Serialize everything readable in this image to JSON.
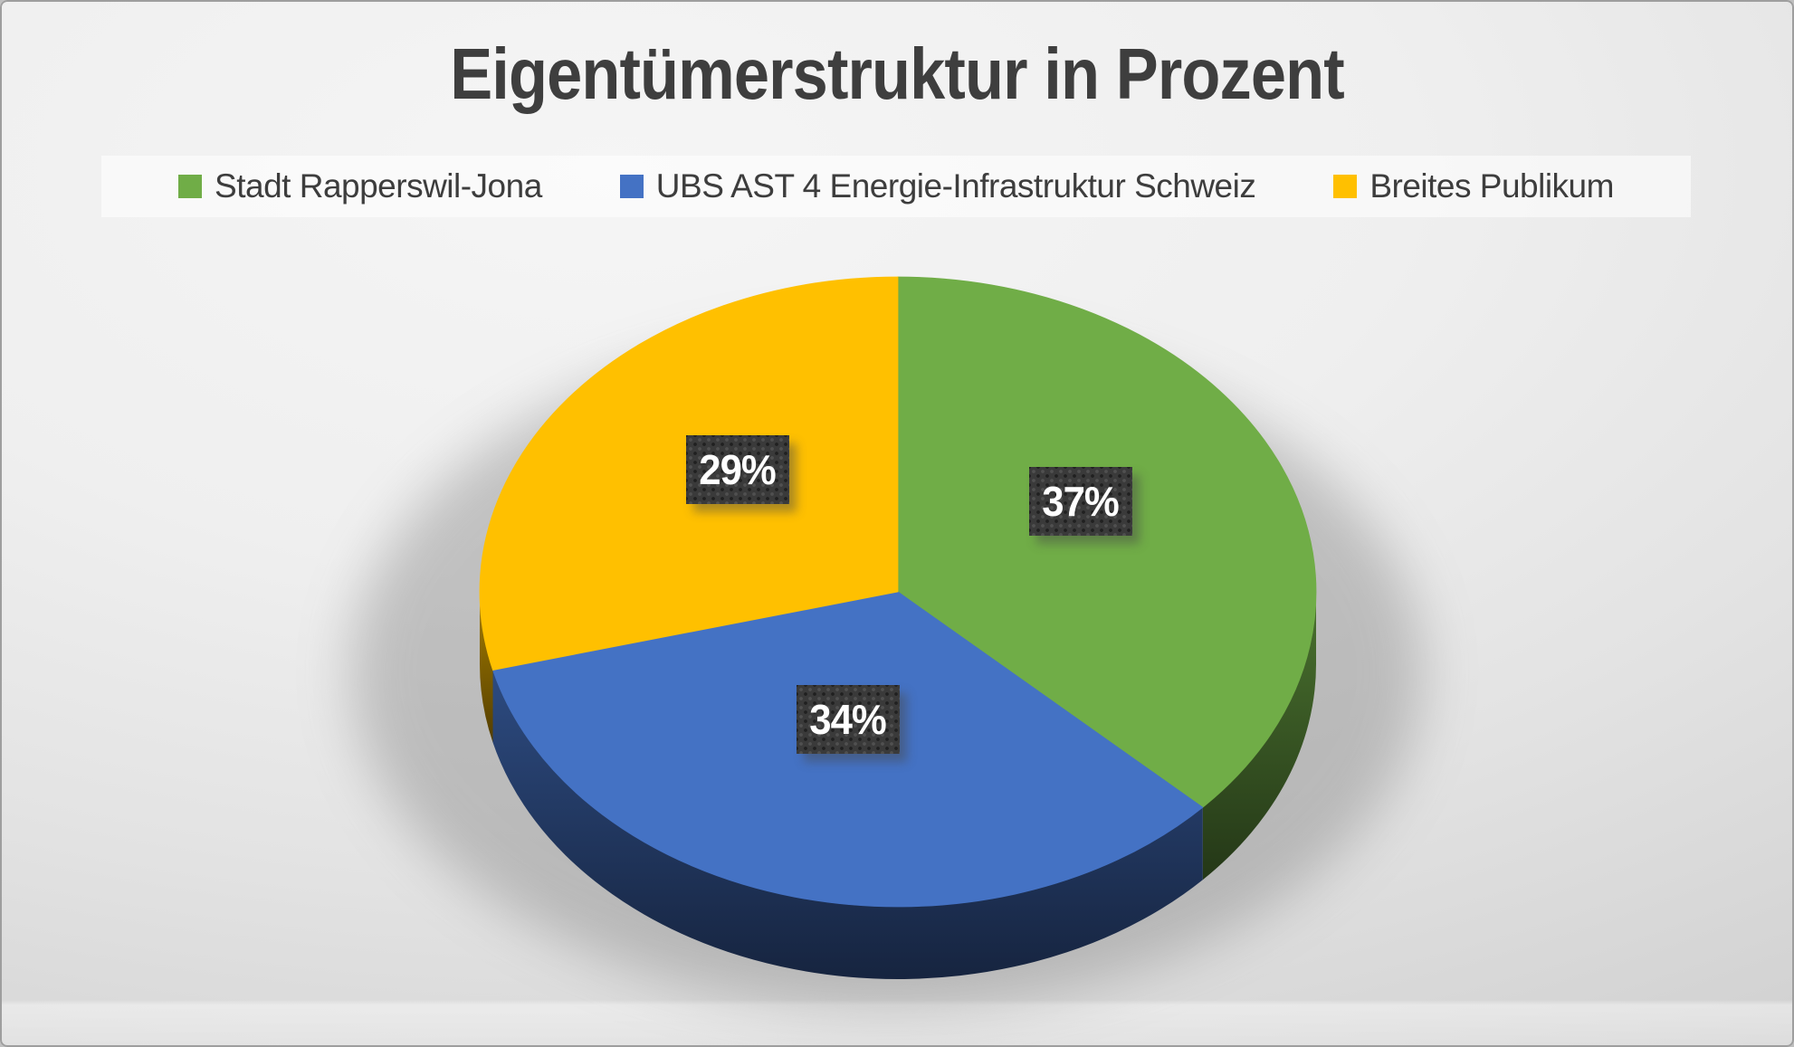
{
  "chart_data": {
    "type": "pie",
    "style": "3d-pie",
    "title": "Eigentümerstruktur in Prozent",
    "unit": "%",
    "start_angle_deg": 0,
    "direction": "clockwise",
    "legend_position": "top",
    "series": [
      {
        "name": "Stadt Rapperswil-Jona",
        "value": 37,
        "color": "#70AD47"
      },
      {
        "name": "UBS AST 4 Energie-Infrastruktur Schweiz",
        "value": 34,
        "color": "#4472C4"
      },
      {
        "name": "Breites Publikum",
        "value": 29,
        "color": "#FFC000"
      }
    ],
    "labels": [
      "37%",
      "34%",
      "29%"
    ]
  }
}
